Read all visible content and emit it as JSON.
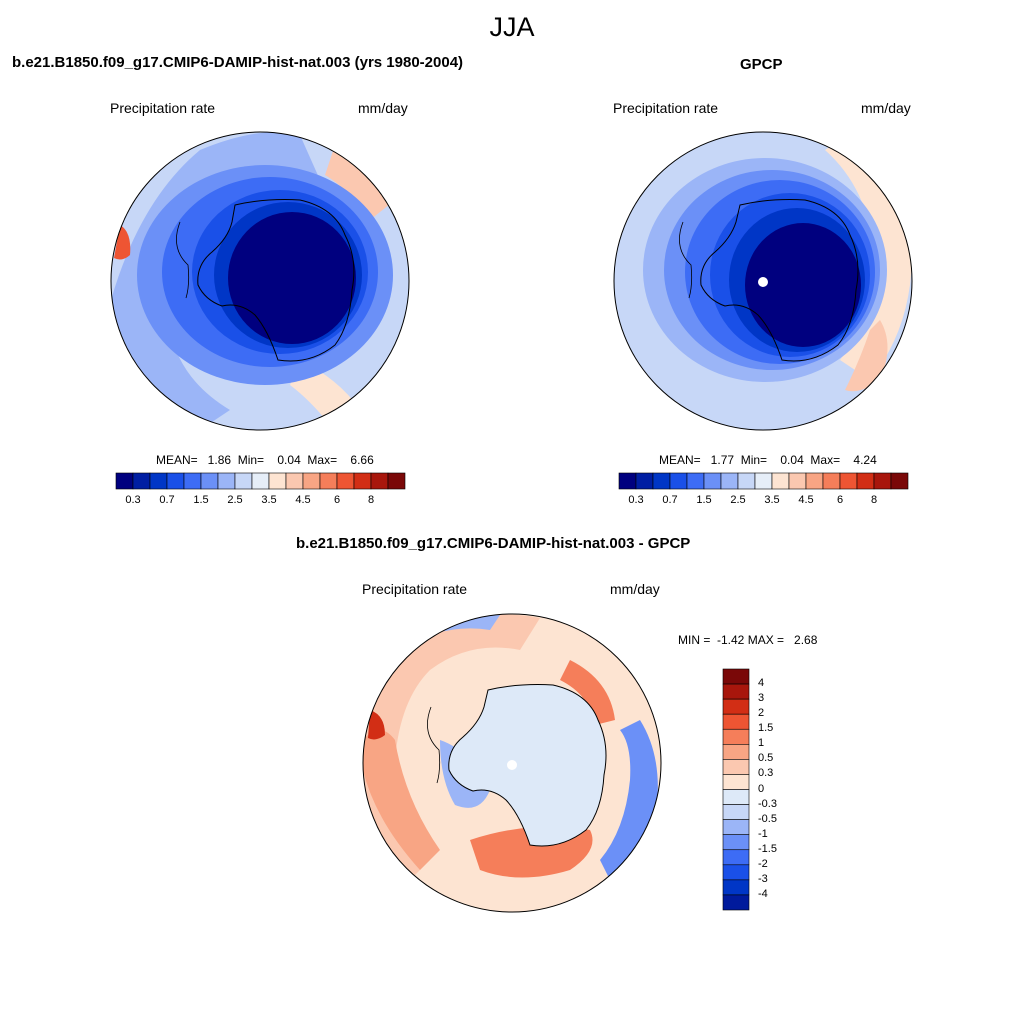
{
  "page": {
    "title": "JJA",
    "colors": {
      "outline": "#000000",
      "background": "#ffffff"
    }
  },
  "chart_data": [
    {
      "type": "heatmap",
      "projection": "south-polar-stereographic",
      "title": "b.e21.B1850.f09_g17.CMIP6-DAMIP-hist-nat.003 (yrs 1980-2004)",
      "left_label": "Precipitation rate",
      "right_label": "mm/day",
      "stats_text": "MEAN=   1.86  Min=    0.04  Max=    6.66",
      "stats": {
        "mean": 1.86,
        "min": 0.04,
        "max": 6.66
      },
      "colorbar": {
        "orientation": "horizontal",
        "levels": [
          0.2,
          0.3,
          0.5,
          0.7,
          1,
          1.5,
          2,
          2.5,
          3,
          3.5,
          4,
          4.5,
          5,
          6,
          7,
          8
        ],
        "tick_labels": [
          "0.3",
          "0.7",
          "1.5",
          "2.5",
          "3.5",
          "4.5",
          "6",
          "8"
        ],
        "colors": [
          "#00007f",
          "#001ea3",
          "#0036c6",
          "#1a50e8",
          "#3d6cf5",
          "#6b90f7",
          "#9bb5f7",
          "#c7d7f7",
          "#e6eef8",
          "#fde4d2",
          "#fbc8b0",
          "#f8a584",
          "#f57e5a",
          "#ee5533",
          "#d22e15",
          "#a8160c",
          "#7a0808"
        ]
      }
    },
    {
      "type": "heatmap",
      "projection": "south-polar-stereographic",
      "title": "GPCP",
      "left_label": "Precipitation rate",
      "right_label": "mm/day",
      "stats_text": "MEAN=   1.77  Min=    0.04  Max=    4.24",
      "stats": {
        "mean": 1.77,
        "min": 0.04,
        "max": 4.24
      },
      "colorbar": {
        "orientation": "horizontal",
        "levels": [
          0.2,
          0.3,
          0.5,
          0.7,
          1,
          1.5,
          2,
          2.5,
          3,
          3.5,
          4,
          4.5,
          5,
          6,
          7,
          8
        ],
        "tick_labels": [
          "0.3",
          "0.7",
          "1.5",
          "2.5",
          "3.5",
          "4.5",
          "6",
          "8"
        ],
        "colors": [
          "#00007f",
          "#001ea3",
          "#0036c6",
          "#1a50e8",
          "#3d6cf5",
          "#6b90f7",
          "#9bb5f7",
          "#c7d7f7",
          "#e6eef8",
          "#fde4d2",
          "#fbc8b0",
          "#f8a584",
          "#f57e5a",
          "#ee5533",
          "#d22e15",
          "#a8160c",
          "#7a0808"
        ]
      }
    },
    {
      "type": "heatmap",
      "projection": "south-polar-stereographic",
      "title": "b.e21.B1850.f09_g17.CMIP6-DAMIP-hist-nat.003 - GPCP",
      "left_label": "Precipitation rate",
      "right_label": "mm/day",
      "stats_text": "MIN =  -1.42 MAX =   2.68",
      "stats": {
        "min": -1.42,
        "max": 2.68
      },
      "colorbar": {
        "orientation": "vertical",
        "levels": [
          4,
          3,
          2,
          1.5,
          1,
          0.5,
          0.3,
          0,
          -0.3,
          -0.5,
          -1,
          -1.5,
          -2,
          -3,
          -4
        ],
        "tick_labels": [
          "4",
          "3",
          "2",
          "1.5",
          "1",
          "0.5",
          "0.3",
          "0",
          "-0.3",
          "-0.5",
          "-1",
          "-1.5",
          "-2",
          "-3",
          "-4"
        ],
        "colors": [
          "#7a0808",
          "#a8160c",
          "#d22e15",
          "#ee5533",
          "#f57e5a",
          "#f8a584",
          "#fbc8b0",
          "#fde4d2",
          "#dde9f8",
          "#c7d7f7",
          "#9bb5f7",
          "#6b90f7",
          "#3d6cf5",
          "#1a50e8",
          "#0036c6",
          "#001a9c"
        ]
      }
    }
  ]
}
